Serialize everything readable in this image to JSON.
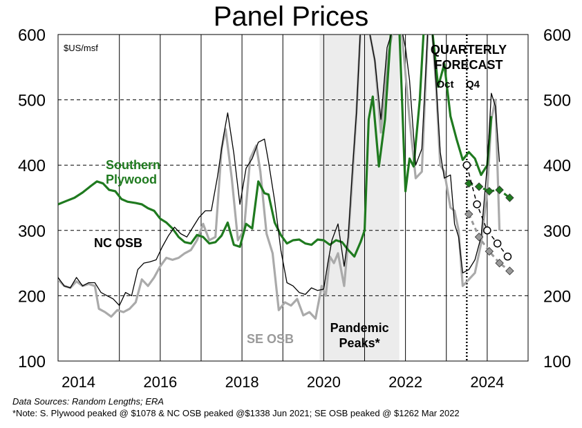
{
  "chart_data": {
    "type": "line",
    "title": "Panel Prices",
    "unit_label": "$US/msf",
    "ylim": [
      100,
      600
    ],
    "y_ticks": [
      100,
      200,
      300,
      400,
      500,
      600
    ],
    "x_range": [
      2013.5,
      2025.0
    ],
    "x_ticks": [
      2014,
      2016,
      2018,
      2020,
      2022,
      2024
    ],
    "grid": "horizontal dashed",
    "shaded_region": {
      "from": 2019.9,
      "to": 2021.85,
      "label": "Pandemic Peaks*"
    },
    "forecast_start": 2023.5,
    "forecast_header": "QUARTERLY FORECAST",
    "forecast_sublabels": [
      "Oct",
      "Q4"
    ],
    "series": [
      {
        "name": "Southern Plywood",
        "color": "#1f7a1f",
        "label_lines": [
          "Southern",
          "Plywood"
        ],
        "points": [
          [
            2013.5,
            340
          ],
          [
            2013.7,
            345
          ],
          [
            2013.9,
            350
          ],
          [
            2014.1,
            358
          ],
          [
            2014.3,
            368
          ],
          [
            2014.45,
            375
          ],
          [
            2014.6,
            372
          ],
          [
            2014.75,
            362
          ],
          [
            2014.9,
            360
          ],
          [
            2015.05,
            348
          ],
          [
            2015.2,
            344
          ],
          [
            2015.4,
            342
          ],
          [
            2015.55,
            340
          ],
          [
            2015.7,
            334
          ],
          [
            2015.85,
            330
          ],
          [
            2016.0,
            318
          ],
          [
            2016.15,
            312
          ],
          [
            2016.3,
            303
          ],
          [
            2016.45,
            290
          ],
          [
            2016.6,
            282
          ],
          [
            2016.75,
            280
          ],
          [
            2016.9,
            293
          ],
          [
            2017.05,
            290
          ],
          [
            2017.2,
            280
          ],
          [
            2017.35,
            282
          ],
          [
            2017.5,
            292
          ],
          [
            2017.65,
            312
          ],
          [
            2017.8,
            278
          ],
          [
            2017.95,
            275
          ],
          [
            2018.1,
            310
          ],
          [
            2018.25,
            303
          ],
          [
            2018.4,
            375
          ],
          [
            2018.55,
            357
          ],
          [
            2018.65,
            355
          ],
          [
            2018.8,
            312
          ],
          [
            2018.95,
            293
          ],
          [
            2019.1,
            280
          ],
          [
            2019.25,
            285
          ],
          [
            2019.4,
            286
          ],
          [
            2019.55,
            280
          ],
          [
            2019.7,
            278
          ],
          [
            2019.85,
            286
          ],
          [
            2020.0,
            285
          ],
          [
            2020.15,
            278
          ],
          [
            2020.3,
            285
          ],
          [
            2020.45,
            282
          ],
          [
            2020.6,
            270
          ],
          [
            2020.75,
            260
          ],
          [
            2020.9,
            282
          ],
          [
            2021.0,
            300
          ],
          [
            2021.1,
            470
          ],
          [
            2021.2,
            505
          ],
          [
            2021.35,
            398
          ],
          [
            2021.5,
            470
          ],
          [
            2021.65,
            610
          ],
          [
            2021.85,
            610
          ],
          [
            2022.0,
            360
          ],
          [
            2022.1,
            410
          ],
          [
            2022.2,
            398
          ],
          [
            2022.35,
            500
          ],
          [
            2022.45,
            610
          ],
          [
            2022.65,
            610
          ],
          [
            2022.8,
            520
          ],
          [
            2022.95,
            555
          ],
          [
            2023.1,
            475
          ],
          [
            2023.25,
            440
          ],
          [
            2023.4,
            408
          ],
          [
            2023.55,
            420
          ],
          [
            2023.7,
            410
          ],
          [
            2023.85,
            385
          ],
          [
            2024.0,
            400
          ],
          [
            2024.1,
            475
          ]
        ]
      },
      {
        "name": "NC OSB",
        "color": "#000000",
        "label_lines": [
          "NC OSB"
        ],
        "points": [
          [
            2013.5,
            228
          ],
          [
            2013.65,
            215
          ],
          [
            2013.8,
            212
          ],
          [
            2013.95,
            228
          ],
          [
            2014.1,
            215
          ],
          [
            2014.25,
            220
          ],
          [
            2014.4,
            220
          ],
          [
            2014.55,
            205
          ],
          [
            2014.7,
            200
          ],
          [
            2014.85,
            195
          ],
          [
            2015.0,
            185
          ],
          [
            2015.15,
            205
          ],
          [
            2015.3,
            200
          ],
          [
            2015.45,
            240
          ],
          [
            2015.6,
            250
          ],
          [
            2015.75,
            252
          ],
          [
            2015.9,
            255
          ],
          [
            2016.05,
            275
          ],
          [
            2016.2,
            292
          ],
          [
            2016.35,
            305
          ],
          [
            2016.5,
            295
          ],
          [
            2016.65,
            290
          ],
          [
            2016.8,
            305
          ],
          [
            2016.95,
            320
          ],
          [
            2017.1,
            330
          ],
          [
            2017.25,
            330
          ],
          [
            2017.4,
            382
          ],
          [
            2017.55,
            445
          ],
          [
            2017.65,
            480
          ],
          [
            2017.8,
            418
          ],
          [
            2017.95,
            340
          ],
          [
            2018.1,
            395
          ],
          [
            2018.25,
            410
          ],
          [
            2018.4,
            435
          ],
          [
            2018.55,
            440
          ],
          [
            2018.65,
            405
          ],
          [
            2018.8,
            345
          ],
          [
            2018.95,
            270
          ],
          [
            2019.1,
            220
          ],
          [
            2019.25,
            215
          ],
          [
            2019.4,
            205
          ],
          [
            2019.55,
            202
          ],
          [
            2019.7,
            212
          ],
          [
            2019.85,
            208
          ],
          [
            2020.0,
            210
          ],
          [
            2020.1,
            250
          ],
          [
            2020.2,
            285
          ],
          [
            2020.35,
            310
          ],
          [
            2020.5,
            245
          ],
          [
            2020.6,
            290
          ],
          [
            2020.7,
            390
          ],
          [
            2020.8,
            480
          ],
          [
            2020.9,
            610
          ],
          [
            2021.1,
            610
          ],
          [
            2021.25,
            560
          ],
          [
            2021.4,
            470
          ],
          [
            2021.55,
            580
          ],
          [
            2021.7,
            610
          ],
          [
            2021.9,
            610
          ],
          [
            2022.0,
            580
          ],
          [
            2022.1,
            530
          ],
          [
            2022.25,
            400
          ],
          [
            2022.4,
            425
          ],
          [
            2022.55,
            610
          ],
          [
            2022.65,
            610
          ],
          [
            2022.75,
            525
          ],
          [
            2022.85,
            420
          ],
          [
            2022.95,
            380
          ],
          [
            2023.1,
            385
          ],
          [
            2023.2,
            310
          ],
          [
            2023.3,
            290
          ],
          [
            2023.4,
            235
          ],
          [
            2023.55,
            240
          ],
          [
            2023.7,
            255
          ],
          [
            2023.85,
            290
          ],
          [
            2024.0,
            400
          ],
          [
            2024.1,
            510
          ],
          [
            2024.2,
            490
          ],
          [
            2024.3,
            405
          ]
        ]
      },
      {
        "name": "SE OSB",
        "color": "#aaaaaa",
        "label_lines": [
          "SE OSB"
        ],
        "points": [
          [
            2013.5,
            225
          ],
          [
            2013.65,
            215
          ],
          [
            2013.8,
            212
          ],
          [
            2013.95,
            222
          ],
          [
            2014.1,
            215
          ],
          [
            2014.25,
            218
          ],
          [
            2014.4,
            215
          ],
          [
            2014.5,
            180
          ],
          [
            2014.65,
            175
          ],
          [
            2014.8,
            168
          ],
          [
            2014.95,
            178
          ],
          [
            2015.1,
            175
          ],
          [
            2015.25,
            180
          ],
          [
            2015.4,
            190
          ],
          [
            2015.55,
            225
          ],
          [
            2015.7,
            215
          ],
          [
            2015.85,
            228
          ],
          [
            2016.0,
            245
          ],
          [
            2016.15,
            258
          ],
          [
            2016.3,
            255
          ],
          [
            2016.45,
            258
          ],
          [
            2016.6,
            265
          ],
          [
            2016.75,
            270
          ],
          [
            2016.9,
            285
          ],
          [
            2017.05,
            310
          ],
          [
            2017.2,
            285
          ],
          [
            2017.35,
            290
          ],
          [
            2017.5,
            425
          ],
          [
            2017.6,
            455
          ],
          [
            2017.75,
            380
          ],
          [
            2017.9,
            285
          ],
          [
            2018.05,
            300
          ],
          [
            2018.2,
            410
          ],
          [
            2018.35,
            430
          ],
          [
            2018.45,
            390
          ],
          [
            2018.6,
            295
          ],
          [
            2018.75,
            265
          ],
          [
            2018.9,
            178
          ],
          [
            2019.05,
            190
          ],
          [
            2019.2,
            185
          ],
          [
            2019.35,
            195
          ],
          [
            2019.5,
            170
          ],
          [
            2019.65,
            175
          ],
          [
            2019.8,
            165
          ],
          [
            2019.95,
            215
          ],
          [
            2020.05,
            200
          ],
          [
            2020.15,
            260
          ],
          [
            2020.25,
            250
          ],
          [
            2020.35,
            265
          ],
          [
            2020.5,
            215
          ],
          [
            2020.6,
            285
          ],
          [
            2020.7,
            380
          ],
          [
            2020.8,
            480
          ],
          [
            2020.9,
            610
          ],
          [
            2021.1,
            610
          ],
          [
            2021.25,
            560
          ],
          [
            2021.4,
            450
          ],
          [
            2021.55,
            560
          ],
          [
            2021.7,
            610
          ],
          [
            2021.9,
            610
          ],
          [
            2022.0,
            540
          ],
          [
            2022.1,
            470
          ],
          [
            2022.25,
            380
          ],
          [
            2022.4,
            390
          ],
          [
            2022.55,
            610
          ],
          [
            2022.65,
            610
          ],
          [
            2022.75,
            520
          ],
          [
            2022.85,
            400
          ],
          [
            2022.95,
            390
          ],
          [
            2023.1,
            335
          ],
          [
            2023.2,
            330
          ],
          [
            2023.3,
            300
          ],
          [
            2023.4,
            215
          ],
          [
            2023.55,
            225
          ],
          [
            2023.7,
            235
          ],
          [
            2023.85,
            280
          ],
          [
            2024.0,
            360
          ],
          [
            2024.1,
            470
          ],
          [
            2024.2,
            500
          ],
          [
            2024.3,
            300
          ]
        ]
      }
    ],
    "forecast_series": [
      {
        "name": "Southern Plywood forecast",
        "color": "#1f7a1f",
        "points": [
          [
            2023.55,
            372
          ],
          [
            2023.8,
            367
          ],
          [
            2024.05,
            360
          ],
          [
            2024.3,
            362
          ],
          [
            2024.55,
            350
          ]
        ]
      },
      {
        "name": "NC OSB forecast",
        "color": "#000000",
        "points": [
          [
            2023.5,
            400
          ],
          [
            2023.75,
            340
          ],
          [
            2024.0,
            300
          ],
          [
            2024.25,
            280
          ],
          [
            2024.5,
            260
          ]
        ]
      },
      {
        "name": "SE OSB forecast",
        "color": "#999999",
        "points": [
          [
            2023.55,
            325
          ],
          [
            2023.8,
            290
          ],
          [
            2024.05,
            268
          ],
          [
            2024.3,
            250
          ],
          [
            2024.55,
            238
          ]
        ]
      }
    ]
  },
  "footnotes": {
    "sources": "Data Sources: Random Lengths; ERA",
    "note": "*Note: S. Plywood peaked @ $1078 & NC OSB peaked @$1338 Jun 2021; SE OSB peaked @ $1262 Mar 2022"
  }
}
